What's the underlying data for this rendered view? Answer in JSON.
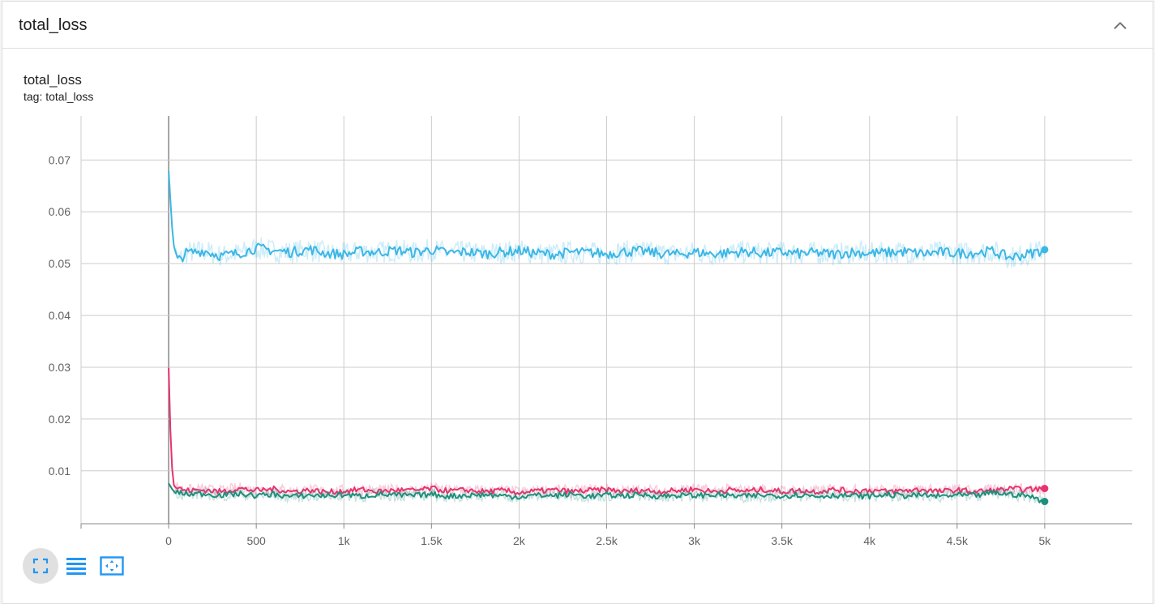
{
  "card": {
    "title": "total_loss"
  },
  "plot": {
    "title": "total_loss",
    "tag": "tag: total_loss"
  },
  "toolbar": {
    "buttons": [
      {
        "name": "fullscreen-toggle-button",
        "icon": "fullscreen-icon",
        "active": true
      },
      {
        "name": "toggle-log-scale-button",
        "icon": "lines-icon",
        "active": false
      },
      {
        "name": "fit-domain-button",
        "icon": "fit-to-data-icon",
        "active": false
      }
    ]
  },
  "colors": {
    "grid": "#cccccc",
    "axis": "#888888",
    "accent": "#2196f3",
    "cyan": "#3cb7e6",
    "pink": "#e8336e",
    "teal": "#1e8f7d"
  },
  "chart_data": {
    "type": "line",
    "title": "total_loss",
    "xlabel": "",
    "ylabel": "",
    "xlim": [
      -500,
      5500
    ],
    "ylim": [
      -0.0002,
      0.0785
    ],
    "x_ticks": [
      0,
      500,
      1000,
      1500,
      2000,
      2500,
      3000,
      3500,
      4000,
      4500,
      5000
    ],
    "x_tick_labels": [
      "0",
      "500",
      "1k",
      "1.5k",
      "2k",
      "2.5k",
      "3k",
      "3.5k",
      "4k",
      "4.5k",
      "5k"
    ],
    "y_ticks": [
      0.01,
      0.02,
      0.03,
      0.04,
      0.05,
      0.06,
      0.07
    ],
    "y_tick_labels": [
      "0.01",
      "0.02",
      "0.03",
      "0.04",
      "0.05",
      "0.06",
      "0.07"
    ],
    "grid": true,
    "legend": "none",
    "smoothing": "each series drawn as a faint raw line with a bold smoothed line on top",
    "series": [
      {
        "color": "#3cb7e6",
        "x": [
          0,
          25,
          50,
          100,
          200,
          300,
          400,
          500,
          600,
          700,
          800,
          900,
          1000,
          1100,
          1200,
          1300,
          1400,
          1500,
          1600,
          1700,
          1800,
          1900,
          2000,
          2100,
          2200,
          2300,
          2400,
          2500,
          2600,
          2700,
          2800,
          2900,
          3000,
          3100,
          3200,
          3300,
          3400,
          3500,
          3600,
          3700,
          3800,
          3900,
          4000,
          4100,
          4200,
          4300,
          4400,
          4500,
          4600,
          4700,
          4800,
          4900,
          5000
        ],
        "y": [
          0.068,
          0.054,
          0.0505,
          0.052,
          0.0525,
          0.0515,
          0.052,
          0.053,
          0.0525,
          0.0522,
          0.0528,
          0.052,
          0.0518,
          0.0524,
          0.0522,
          0.0526,
          0.0521,
          0.0527,
          0.052,
          0.0523,
          0.0519,
          0.0522,
          0.0525,
          0.052,
          0.0518,
          0.0522,
          0.0521,
          0.0519,
          0.0523,
          0.0524,
          0.052,
          0.0518,
          0.0522,
          0.0519,
          0.0521,
          0.0523,
          0.052,
          0.0522,
          0.0519,
          0.0521,
          0.0518,
          0.0522,
          0.052,
          0.0521,
          0.0523,
          0.0519,
          0.0522,
          0.052,
          0.0521,
          0.0524,
          0.0512,
          0.0518,
          0.0527
        ]
      },
      {
        "color": "#e8336e",
        "x": [
          0,
          15,
          30,
          60,
          100,
          200,
          300,
          400,
          500,
          600,
          700,
          800,
          900,
          1000,
          1100,
          1200,
          1300,
          1400,
          1500,
          1600,
          1700,
          1800,
          1900,
          2000,
          2100,
          2200,
          2300,
          2400,
          2500,
          2600,
          2700,
          2800,
          2900,
          3000,
          3100,
          3200,
          3300,
          3400,
          3500,
          3600,
          3700,
          3800,
          3900,
          4000,
          4100,
          4200,
          4300,
          4400,
          4500,
          4600,
          4700,
          4800,
          4900,
          5000
        ],
        "y": [
          0.03,
          0.012,
          0.0072,
          0.0066,
          0.0062,
          0.0063,
          0.006,
          0.0066,
          0.0062,
          0.0065,
          0.006,
          0.0063,
          0.0059,
          0.0061,
          0.0064,
          0.006,
          0.0063,
          0.0062,
          0.0066,
          0.0061,
          0.0063,
          0.006,
          0.0062,
          0.0058,
          0.0061,
          0.0063,
          0.006,
          0.0062,
          0.0064,
          0.006,
          0.0063,
          0.006,
          0.0062,
          0.0065,
          0.006,
          0.0063,
          0.0061,
          0.0064,
          0.006,
          0.0062,
          0.006,
          0.0064,
          0.0061,
          0.0063,
          0.006,
          0.0062,
          0.0064,
          0.006,
          0.0063,
          0.006,
          0.0062,
          0.0065,
          0.0064,
          0.0066
        ]
      },
      {
        "color": "#1e8f7d",
        "x": [
          0,
          15,
          30,
          60,
          100,
          200,
          300,
          400,
          500,
          600,
          700,
          800,
          900,
          1000,
          1100,
          1200,
          1300,
          1400,
          1500,
          1600,
          1700,
          1800,
          1900,
          2000,
          2100,
          2200,
          2300,
          2400,
          2500,
          2600,
          2700,
          2800,
          2900,
          3000,
          3100,
          3200,
          3300,
          3400,
          3500,
          3600,
          3700,
          3800,
          3900,
          4000,
          4100,
          4200,
          4300,
          4400,
          4500,
          4600,
          4700,
          4800,
          4900,
          5000
        ],
        "y": [
          0.0075,
          0.0068,
          0.006,
          0.0058,
          0.0055,
          0.0056,
          0.0053,
          0.0056,
          0.0052,
          0.0055,
          0.005,
          0.0053,
          0.0052,
          0.0054,
          0.0051,
          0.0055,
          0.0053,
          0.0052,
          0.0055,
          0.0051,
          0.0053,
          0.0054,
          0.0052,
          0.005,
          0.0053,
          0.0052,
          0.0055,
          0.0051,
          0.0053,
          0.0052,
          0.0054,
          0.0051,
          0.0053,
          0.0052,
          0.0054,
          0.0052,
          0.0051,
          0.0053,
          0.0052,
          0.0054,
          0.0051,
          0.0053,
          0.0052,
          0.0051,
          0.0054,
          0.0052,
          0.0053,
          0.0051,
          0.0053,
          0.0052,
          0.0058,
          0.0055,
          0.0052,
          0.0041
        ]
      }
    ]
  }
}
